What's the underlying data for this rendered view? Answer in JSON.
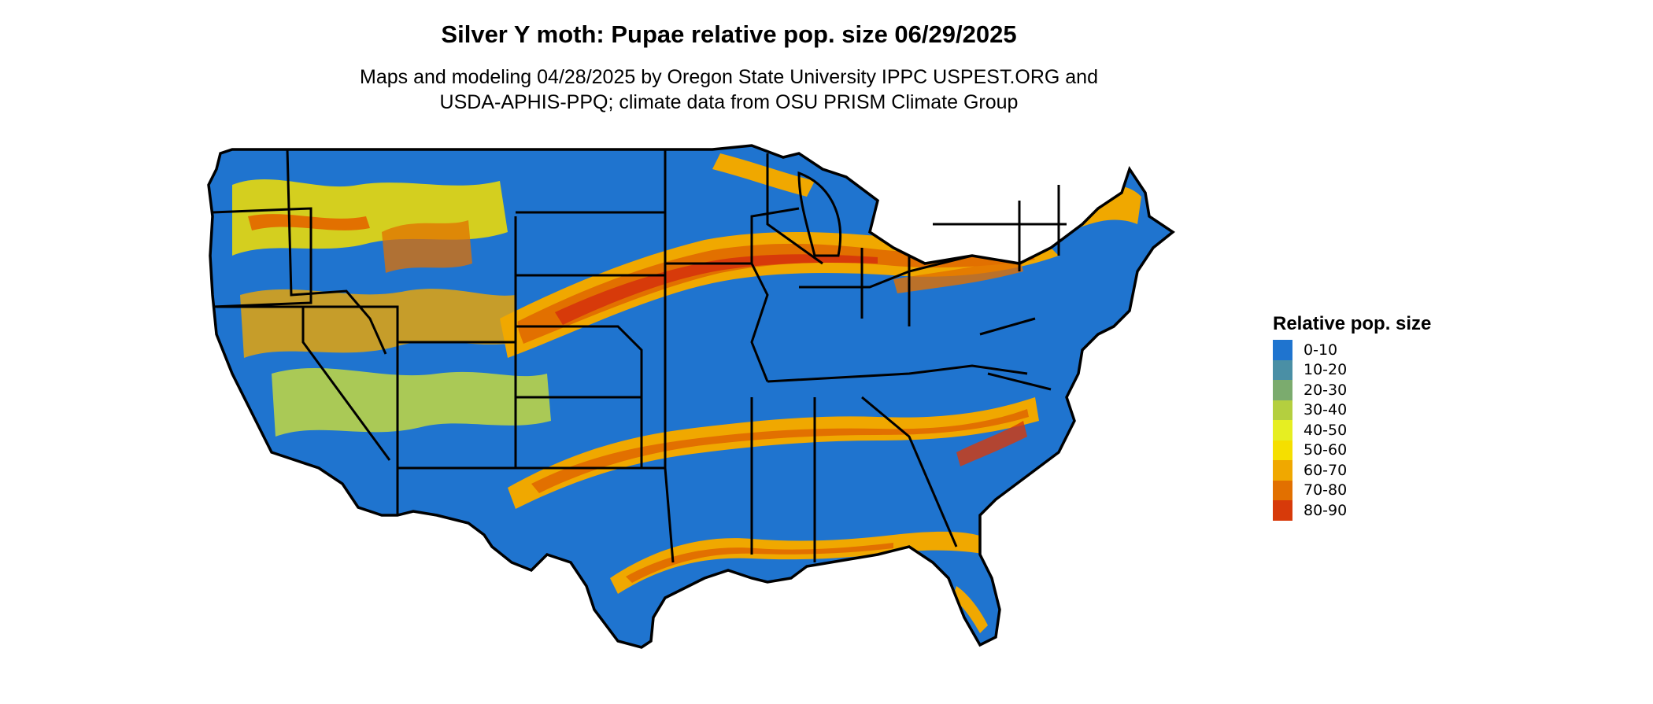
{
  "header": {
    "title": "Silver Y moth: Pupae relative pop. size 06/29/2025",
    "subtitle_line1": "Maps and modeling 04/28/2025 by Oregon State University IPPC USPEST.ORG and",
    "subtitle_line2": "USDA-APHIS-PPQ; climate data from OSU PRISM Climate Group"
  },
  "legend": {
    "title": "Relative pop. size",
    "items": [
      {
        "label": "0-10",
        "color": "#1f74cf"
      },
      {
        "label": "10-20",
        "color": "#4a8fa5"
      },
      {
        "label": "20-30",
        "color": "#7bab6e"
      },
      {
        "label": "30-40",
        "color": "#b4cf3f"
      },
      {
        "label": "40-50",
        "color": "#e6ee22"
      },
      {
        "label": "50-60",
        "color": "#f5df00"
      },
      {
        "label": "60-70",
        "color": "#f0a800"
      },
      {
        "label": "70-80",
        "color": "#e27000"
      },
      {
        "label": "80-90",
        "color": "#d73a0a"
      }
    ]
  },
  "map": {
    "region": "Contiguous United States",
    "base_color": "#1f74cf"
  }
}
